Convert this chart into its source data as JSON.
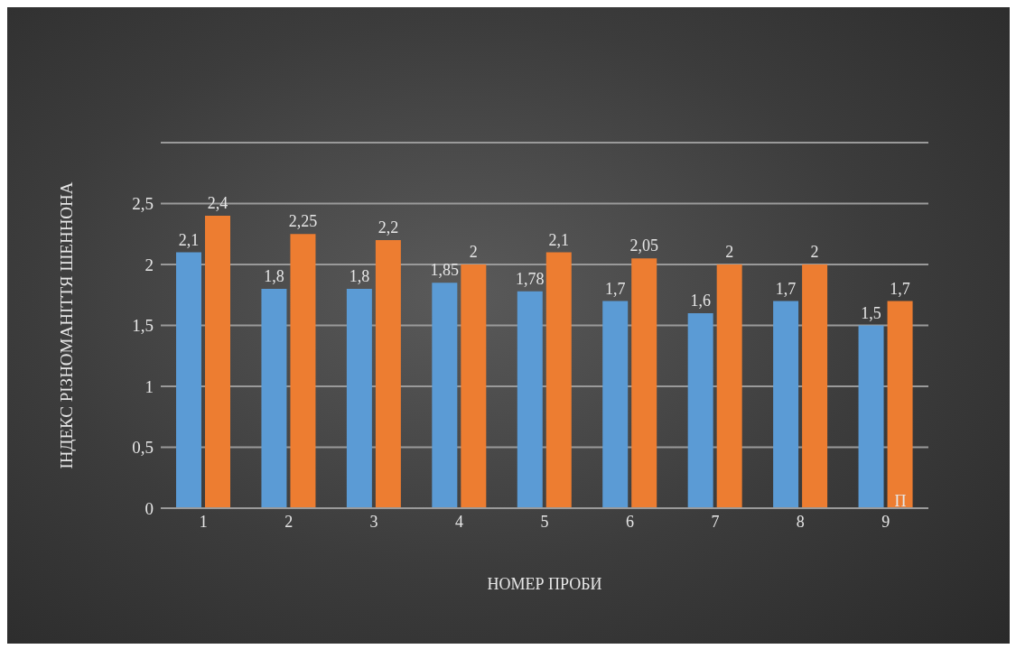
{
  "chart_data": {
    "type": "bar",
    "xlabel": "НОМЕР ПРОБИ",
    "ylabel": "ІНДЕКС РІЗНОМАНІТТЯ ШЕННОНА",
    "categories": [
      "1",
      "2",
      "3",
      "4",
      "5",
      "6",
      "7",
      "8",
      "9"
    ],
    "series": [
      {
        "name": "П",
        "color": "#5b9bd5",
        "values": [
          2.1,
          1.8,
          1.8,
          1.85,
          1.78,
          1.7,
          1.6,
          1.7,
          1.5
        ],
        "value_labels": [
          "2,1",
          "1,8",
          "1,8",
          "1,85",
          "1,78",
          "1,7",
          "1,6",
          "1,7",
          "1,5"
        ]
      },
      {
        "color": "#ed7d31",
        "values": [
          2.4,
          2.25,
          2.2,
          2,
          2.1,
          2.05,
          2,
          2,
          1.7
        ],
        "value_labels": [
          "2,4",
          "2,25",
          "2,2",
          "2",
          "2,1",
          "2,05",
          "2",
          "2",
          "1,7"
        ]
      }
    ],
    "ylim": [
      0,
      3
    ],
    "yticks": [
      0,
      {
        "value": 0.5,
        "label": "0,5"
      },
      1,
      {
        "value": 1.5,
        "label": "1,5"
      },
      2,
      {
        "value": 2.5,
        "label": "2,5"
      },
      {
        "value": 3,
        "label": null
      }
    ],
    "grid": "y"
  }
}
